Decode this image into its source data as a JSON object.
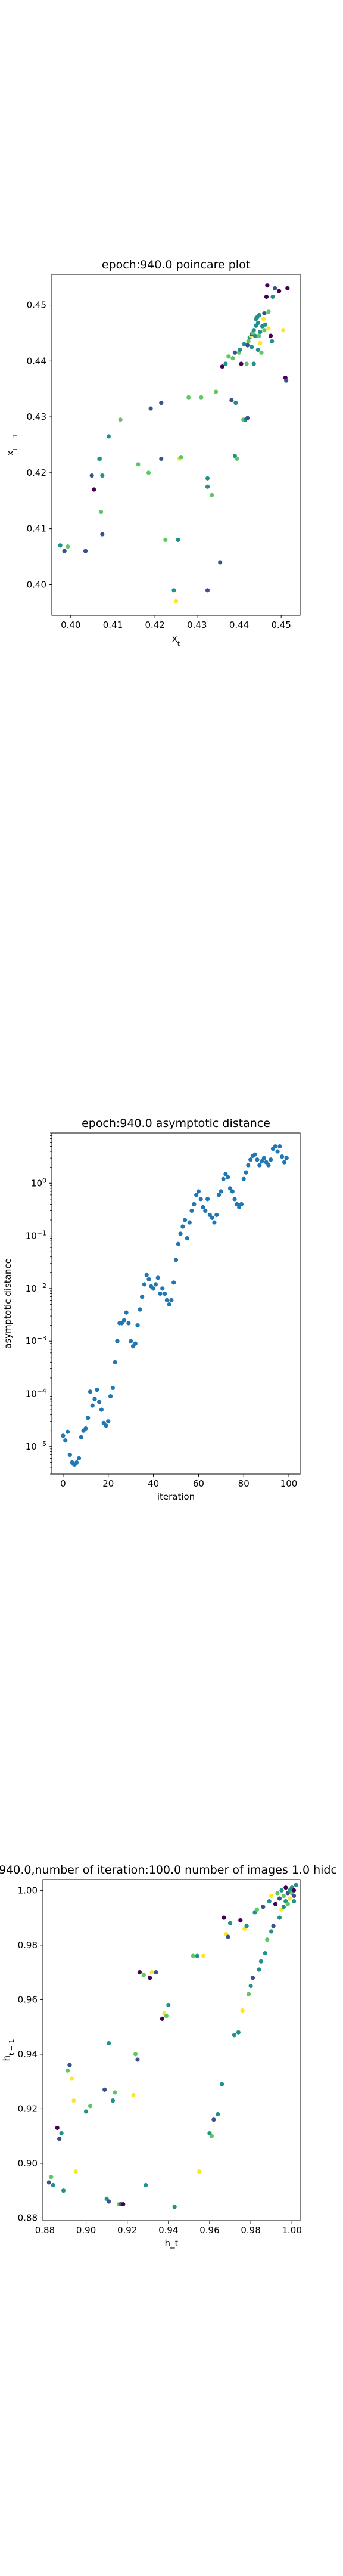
{
  "chart_data": [
    {
      "type": "scatter",
      "title": "epoch:940.0 poincare plot",
      "xlabel": "x_t",
      "ylabel": "x_{t-1}",
      "xlim": [
        0.3955,
        0.4545
      ],
      "ylim": [
        0.3945,
        0.4555
      ],
      "xticks": [
        "0.40",
        "0.41",
        "0.42",
        "0.43",
        "0.44",
        "0.45"
      ],
      "yticks": [
        "0.40",
        "0.41",
        "0.42",
        "0.43",
        "0.44",
        "0.45"
      ],
      "xtick_values": [
        0.4,
        0.41,
        0.42,
        0.43,
        0.44,
        0.45
      ],
      "ytick_values": [
        0.4,
        0.41,
        0.42,
        0.43,
        0.44,
        0.45
      ],
      "colors": [
        "#440154",
        "#3b528b",
        "#21918c",
        "#5ec962",
        "#fde725"
      ],
      "points": [
        [
          0.3975,
          0.407,
          "#21918c"
        ],
        [
          0.3985,
          0.406,
          "#3b528b"
        ],
        [
          0.3993,
          0.4068,
          "#5ec962"
        ],
        [
          0.4035,
          0.406,
          "#3b528b"
        ],
        [
          0.405,
          0.4195,
          "#3b528b"
        ],
        [
          0.4055,
          0.417,
          "#440154"
        ],
        [
          0.407,
          0.4225,
          "#5ec962"
        ],
        [
          0.4068,
          0.4225,
          "#21918c"
        ],
        [
          0.4072,
          0.413,
          "#5ec962"
        ],
        [
          0.4075,
          0.4195,
          "#21918c"
        ],
        [
          0.4075,
          0.409,
          "#3b528b"
        ],
        [
          0.409,
          0.4265,
          "#21918c"
        ],
        [
          0.4118,
          0.4295,
          "#5ec962"
        ],
        [
          0.416,
          0.4215,
          "#5ec962"
        ],
        [
          0.4185,
          0.42,
          "#5ec962"
        ],
        [
          0.419,
          0.4315,
          "#3b528b"
        ],
        [
          0.4215,
          0.4225,
          "#3b528b"
        ],
        [
          0.4215,
          0.4325,
          "#3b528b"
        ],
        [
          0.4225,
          0.408,
          "#5ec962"
        ],
        [
          0.4245,
          0.399,
          "#21918c"
        ],
        [
          0.425,
          0.397,
          "#fde725"
        ],
        [
          0.4255,
          0.408,
          "#21918c"
        ],
        [
          0.4258,
          0.4225,
          "#fde725"
        ],
        [
          0.4262,
          0.4228,
          "#5ec962"
        ],
        [
          0.428,
          0.4335,
          "#5ec962"
        ],
        [
          0.431,
          0.4335,
          "#5ec962"
        ],
        [
          0.4325,
          0.399,
          "#3b528b"
        ],
        [
          0.4325,
          0.4175,
          "#21918c"
        ],
        [
          0.4325,
          0.419,
          "#21918c"
        ],
        [
          0.4335,
          0.416,
          "#5ec962"
        ],
        [
          0.4345,
          0.4345,
          "#5ec962"
        ],
        [
          0.4355,
          0.404,
          "#3b528b"
        ],
        [
          0.436,
          0.439,
          "#440154"
        ],
        [
          0.4368,
          0.4395,
          "#21918c"
        ],
        [
          0.4375,
          0.4408,
          "#5ec962"
        ],
        [
          0.4385,
          0.4405,
          "#5ec962"
        ],
        [
          0.4382,
          0.433,
          "#3b528b"
        ],
        [
          0.439,
          0.4415,
          "#3b528b"
        ],
        [
          0.4392,
          0.4325,
          "#21918c"
        ],
        [
          0.439,
          0.423,
          "#21918c"
        ],
        [
          0.4395,
          0.4225,
          "#5ec962"
        ],
        [
          0.44,
          0.4415,
          "#5ec962"
        ],
        [
          0.4402,
          0.442,
          "#21918c"
        ],
        [
          0.4405,
          0.4395,
          "#440154"
        ],
        [
          0.441,
          0.4295,
          "#5ec962"
        ],
        [
          0.4412,
          0.443,
          "#21918c"
        ],
        [
          0.4415,
          0.4295,
          "#21918c"
        ],
        [
          0.4418,
          0.4395,
          "#5ec962"
        ],
        [
          0.442,
          0.4298,
          "#3b528b"
        ],
        [
          0.442,
          0.4428,
          "#3b528b"
        ],
        [
          0.4422,
          0.4435,
          "#5ec962"
        ],
        [
          0.4425,
          0.4442,
          "#21918c"
        ],
        [
          0.4428,
          0.4445,
          "#fde725"
        ],
        [
          0.443,
          0.4425,
          "#21918c"
        ],
        [
          0.443,
          0.4448,
          "#3b528b"
        ],
        [
          0.4432,
          0.445,
          "#5ec962"
        ],
        [
          0.4435,
          0.4455,
          "#21918c"
        ],
        [
          0.4435,
          0.4395,
          "#21918c"
        ],
        [
          0.4438,
          0.4445,
          "#21918c"
        ],
        [
          0.444,
          0.4463,
          "#21918c"
        ],
        [
          0.444,
          0.4475,
          "#21918c"
        ],
        [
          0.4443,
          0.4478,
          "#21918c"
        ],
        [
          0.4445,
          0.442,
          "#21918c"
        ],
        [
          0.4445,
          0.4468,
          "#21918c"
        ],
        [
          0.4447,
          0.4445,
          "#5ec962"
        ],
        [
          0.4448,
          0.4482,
          "#21918c"
        ],
        [
          0.445,
          0.4432,
          "#fde725"
        ],
        [
          0.445,
          0.4452,
          "#21918c"
        ],
        [
          0.4453,
          0.4415,
          "#5ec962"
        ],
        [
          0.4455,
          0.4462,
          "#21918c"
        ],
        [
          0.4458,
          0.4475,
          "#fde725"
        ],
        [
          0.446,
          0.4455,
          "#5ec962"
        ],
        [
          0.446,
          0.4485,
          "#3b528b"
        ],
        [
          0.4462,
          0.4465,
          "#21918c"
        ],
        [
          0.4465,
          0.4515,
          "#440154"
        ],
        [
          0.4467,
          0.4535,
          "#440154"
        ],
        [
          0.447,
          0.4458,
          "#fde725"
        ],
        [
          0.447,
          0.4488,
          "#5ec962"
        ],
        [
          0.4475,
          0.4445,
          "#440154"
        ],
        [
          0.4478,
          0.4435,
          "#21918c"
        ],
        [
          0.448,
          0.4515,
          "#21918c"
        ],
        [
          0.4485,
          0.453,
          "#3b528b"
        ],
        [
          0.4495,
          0.4525,
          "#440154"
        ],
        [
          0.4505,
          0.4455,
          "#fde725"
        ],
        [
          0.451,
          0.437,
          "#440154"
        ],
        [
          0.4512,
          0.4365,
          "#3b528b"
        ],
        [
          0.4515,
          0.453,
          "#440154"
        ]
      ]
    },
    {
      "type": "scatter",
      "title": "epoch:940.0 asymptotic distance",
      "xlabel": "iteration",
      "ylabel": "asymptotic distance",
      "yscale": "log",
      "xlim": [
        -5,
        105
      ],
      "ylim": [
        3e-06,
        9
      ],
      "xticks": [
        "0",
        "20",
        "40",
        "60",
        "80",
        "100"
      ],
      "xtick_values": [
        0,
        20,
        40,
        60,
        80,
        100
      ],
      "ytick_values": [
        1e-05,
        0.0001,
        0.001,
        0.01,
        0.1,
        1
      ],
      "color": "#1f77b4",
      "x": [
        0,
        1,
        2,
        3,
        4,
        5,
        6,
        7,
        8,
        9,
        10,
        11,
        12,
        13,
        14,
        15,
        16,
        17,
        18,
        19,
        20,
        21,
        22,
        23,
        24,
        25,
        26,
        27,
        28,
        29,
        30,
        31,
        32,
        33,
        34,
        35,
        36,
        37,
        38,
        39,
        40,
        41,
        42,
        43,
        44,
        45,
        46,
        47,
        48,
        49,
        50,
        51,
        52,
        53,
        54,
        55,
        56,
        57,
        58,
        59,
        60,
        61,
        62,
        63,
        64,
        65,
        66,
        67,
        68,
        69,
        70,
        71,
        72,
        73,
        74,
        75,
        76,
        77,
        78,
        79,
        80,
        81,
        82,
        83,
        84,
        85,
        86,
        87,
        88,
        89,
        90,
        91,
        92,
        93,
        94,
        95,
        96,
        97,
        98,
        99
      ],
      "y": [
        1.6e-05,
        1.3e-05,
        1.9e-05,
        7e-06,
        5e-06,
        4.5e-06,
        5e-06,
        6e-06,
        1.5e-05,
        2e-05,
        2.2e-05,
        3.5e-05,
        0.00011,
        6e-05,
        8e-05,
        0.00012,
        7e-05,
        5e-05,
        2.8e-05,
        2.5e-05,
        3e-05,
        9e-05,
        0.00013,
        0.0004,
        0.001,
        0.0022,
        0.0022,
        0.0025,
        0.0035,
        0.0022,
        0.001,
        0.0008,
        0.0009,
        0.002,
        0.004,
        0.007,
        0.012,
        0.018,
        0.015,
        0.011,
        0.01,
        0.012,
        0.016,
        0.008,
        0.01,
        0.008,
        0.006,
        0.005,
        0.006,
        0.013,
        0.035,
        0.07,
        0.11,
        0.15,
        0.2,
        0.09,
        0.18,
        0.3,
        0.4,
        0.6,
        0.7,
        0.5,
        0.35,
        0.3,
        0.5,
        0.25,
        0.22,
        0.18,
        0.25,
        0.6,
        0.7,
        1.2,
        1.5,
        1.3,
        0.8,
        0.7,
        0.5,
        0.4,
        0.35,
        0.4,
        1.2,
        1.6,
        2.2,
        2.8,
        3.3,
        3.5,
        2.8,
        2.2,
        2.6,
        3,
        2.5,
        2.2,
        2.8,
        4.5,
        5,
        4,
        5,
        3.2,
        2.5,
        3
      ]
    },
    {
      "type": "scatter",
      "title": "940.0,number of iteration:100.0  number of images 1.0 hidc",
      "xlabel": "h_t",
      "ylabel": "h_{t-1}",
      "xlim": [
        0.879,
        1.004
      ],
      "ylim": [
        0.879,
        1.004
      ],
      "xticks": [
        "0.88",
        "0.90",
        "0.92",
        "0.94",
        "0.96",
        "0.98",
        "1.00"
      ],
      "yticks": [
        "0.88",
        "0.90",
        "0.92",
        "0.94",
        "0.96",
        "0.98",
        "1.00"
      ],
      "xtick_values": [
        0.88,
        0.9,
        0.92,
        0.94,
        0.96,
        0.98,
        1.0
      ],
      "ytick_values": [
        0.88,
        0.9,
        0.92,
        0.94,
        0.96,
        0.98,
        1.0
      ],
      "colors": [
        "#440154",
        "#3b528b",
        "#21918c",
        "#5ec962",
        "#fde725"
      ],
      "points": [
        [
          0.882,
          0.893,
          "#3b528b"
        ],
        [
          0.883,
          0.895,
          "#5ec962"
        ],
        [
          0.884,
          0.892,
          "#21918c"
        ],
        [
          0.886,
          0.913,
          "#440154"
        ],
        [
          0.887,
          0.909,
          "#3b528b"
        ],
        [
          0.888,
          0.911,
          "#21918c"
        ],
        [
          0.889,
          0.89,
          "#21918c"
        ],
        [
          0.891,
          0.934,
          "#5ec962"
        ],
        [
          0.892,
          0.936,
          "#3b528b"
        ],
        [
          0.893,
          0.931,
          "#fde725"
        ],
        [
          0.894,
          0.923,
          "#fde725"
        ],
        [
          0.895,
          0.897,
          "#fde725"
        ],
        [
          0.9,
          0.919,
          "#21918c"
        ],
        [
          0.902,
          0.921,
          "#5ec962"
        ],
        [
          0.909,
          0.927,
          "#3b528b"
        ],
        [
          0.91,
          0.887,
          "#21918c"
        ],
        [
          0.911,
          0.886,
          "#3b528b"
        ],
        [
          0.911,
          0.944,
          "#21918c"
        ],
        [
          0.913,
          0.923,
          "#21918c"
        ],
        [
          0.914,
          0.926,
          "#5ec962"
        ],
        [
          0.916,
          0.885,
          "#5ec962"
        ],
        [
          0.917,
          0.885,
          "#3b528b"
        ],
        [
          0.918,
          0.885,
          "#440154"
        ],
        [
          0.923,
          0.925,
          "#fde725"
        ],
        [
          0.924,
          0.94,
          "#5ec962"
        ],
        [
          0.925,
          0.938,
          "#3b528b"
        ],
        [
          0.926,
          0.97,
          "#440154"
        ],
        [
          0.928,
          0.969,
          "#5ec962"
        ],
        [
          0.929,
          0.892,
          "#21918c"
        ],
        [
          0.931,
          0.968,
          "#440154"
        ],
        [
          0.932,
          0.97,
          "#fde725"
        ],
        [
          0.934,
          0.97,
          "#3b528b"
        ],
        [
          0.937,
          0.953,
          "#440154"
        ],
        [
          0.938,
          0.955,
          "#fde725"
        ],
        [
          0.939,
          0.954,
          "#5ec962"
        ],
        [
          0.94,
          0.958,
          "#21918c"
        ],
        [
          0.943,
          0.884,
          "#21918c"
        ],
        [
          0.952,
          0.976,
          "#5ec962"
        ],
        [
          0.954,
          0.976,
          "#21918c"
        ],
        [
          0.955,
          0.897,
          "#fde725"
        ],
        [
          0.957,
          0.976,
          "#fde725"
        ],
        [
          0.96,
          0.911,
          "#21918c"
        ],
        [
          0.961,
          0.91,
          "#5ec962"
        ],
        [
          0.962,
          0.916,
          "#3b528b"
        ],
        [
          0.964,
          0.918,
          "#21918c"
        ],
        [
          0.966,
          0.929,
          "#21918c"
        ],
        [
          0.967,
          0.99,
          "#440154"
        ],
        [
          0.968,
          0.984,
          "#fde725"
        ],
        [
          0.969,
          0.983,
          "#3b528b"
        ],
        [
          0.97,
          0.988,
          "#21918c"
        ],
        [
          0.972,
          0.947,
          "#21918c"
        ],
        [
          0.974,
          0.948,
          "#21918c"
        ],
        [
          0.975,
          0.989,
          "#440154"
        ],
        [
          0.976,
          0.956,
          "#fde725"
        ],
        [
          0.977,
          0.986,
          "#fde725"
        ],
        [
          0.978,
          0.987,
          "#21918c"
        ],
        [
          0.979,
          0.962,
          "#5ec962"
        ],
        [
          0.98,
          0.965,
          "#21918c"
        ],
        [
          0.981,
          0.968,
          "#3b528b"
        ],
        [
          0.982,
          0.992,
          "#21918c"
        ],
        [
          0.983,
          0.993,
          "#5ec962"
        ],
        [
          0.984,
          0.971,
          "#21918c"
        ],
        [
          0.985,
          0.974,
          "#21918c"
        ],
        [
          0.986,
          0.994,
          "#3b528b"
        ],
        [
          0.987,
          0.977,
          "#21918c"
        ],
        [
          0.988,
          0.982,
          "#5ec962"
        ],
        [
          0.989,
          0.996,
          "#21918c"
        ],
        [
          0.99,
          0.985,
          "#21918c"
        ],
        [
          0.99,
          0.998,
          "#fde725"
        ],
        [
          0.991,
          0.987,
          "#3b528b"
        ],
        [
          0.992,
          0.995,
          "#440154"
        ],
        [
          0.993,
          0.999,
          "#5ec962"
        ],
        [
          0.994,
          0.99,
          "#21918c"
        ],
        [
          0.994,
          0.997,
          "#3b528b"
        ],
        [
          0.995,
          1.0,
          "#21918c"
        ],
        [
          0.995,
          0.993,
          "#fde725"
        ],
        [
          0.996,
          0.998,
          "#5ec962"
        ],
        [
          0.996,
          0.994,
          "#21918c"
        ],
        [
          0.997,
          1.001,
          "#440154"
        ],
        [
          0.997,
          0.996,
          "#21918c"
        ],
        [
          0.998,
          0.999,
          "#3b528b"
        ],
        [
          0.998,
          0.995,
          "#5ec962"
        ],
        [
          0.999,
          1.0,
          "#21918c"
        ],
        [
          0.999,
          0.997,
          "#fde725"
        ],
        [
          1.0,
          0.999,
          "#5ec962"
        ],
        [
          1.0,
          1.001,
          "#21918c"
        ],
        [
          1.001,
          0.998,
          "#3b528b"
        ],
        [
          1.001,
          1.0,
          "#440154"
        ],
        [
          1.001,
          0.996,
          "#21918c"
        ],
        [
          1.002,
          1.002,
          "#21918c"
        ]
      ]
    }
  ]
}
